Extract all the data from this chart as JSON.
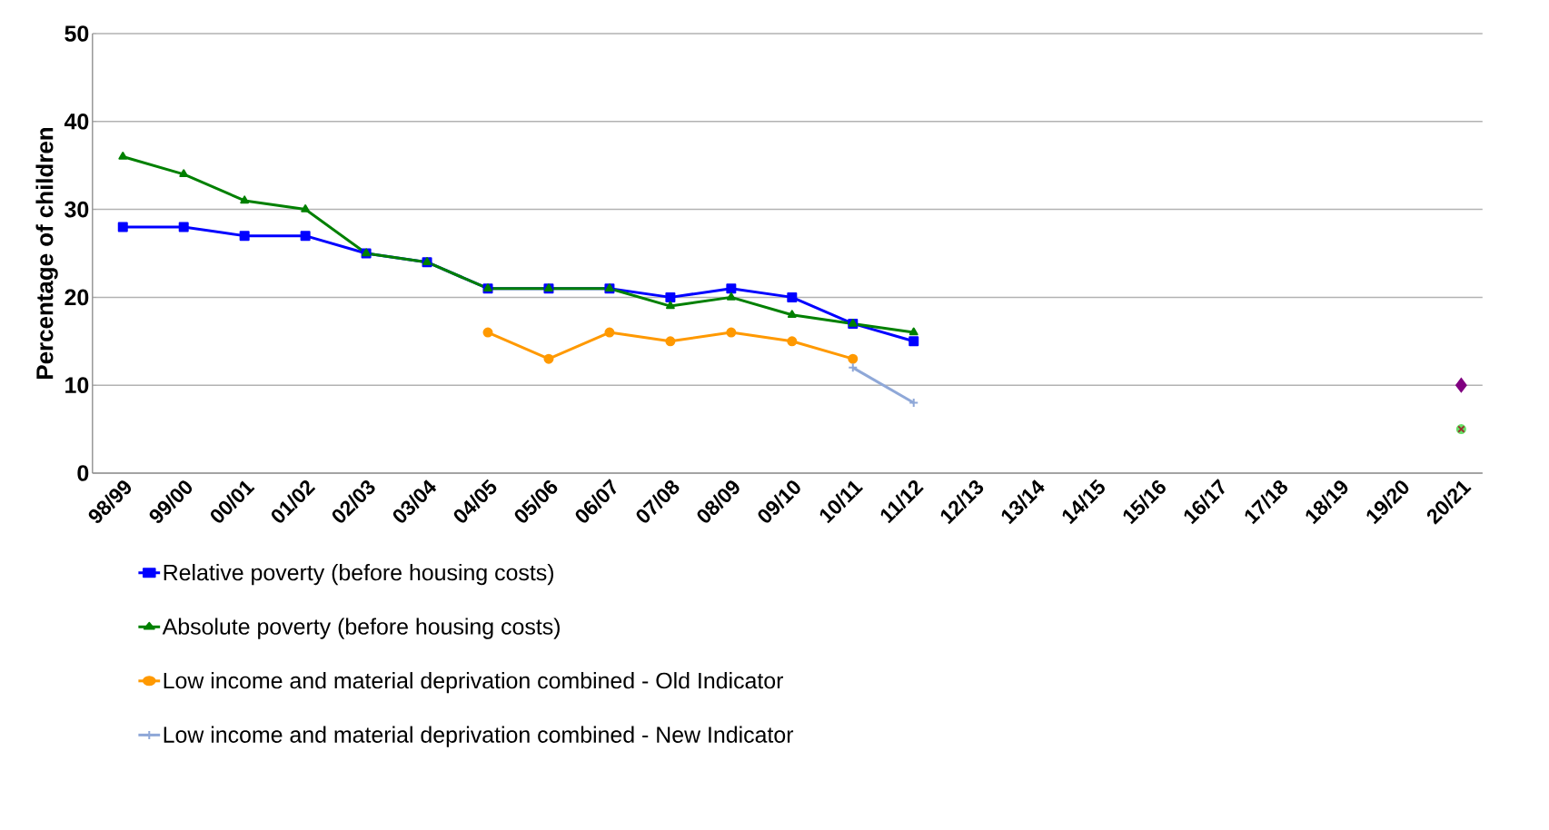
{
  "chart_data": {
    "type": "line",
    "ylabel": "Percentage of children",
    "categories": [
      "98/99",
      "99/00",
      "00/01",
      "01/02",
      "02/03",
      "03/04",
      "04/05",
      "05/06",
      "06/07",
      "07/08",
      "08/09",
      "09/10",
      "10/11",
      "11/12",
      "12/13",
      "13/14",
      "14/15",
      "15/16",
      "16/17",
      "17/18",
      "18/19",
      "19/20",
      "20/21"
    ],
    "ylim": [
      0,
      50
    ],
    "yticks": [
      0,
      10,
      20,
      30,
      40,
      50
    ],
    "grid": "y",
    "legend": "bottom",
    "series": [
      {
        "name": "Relative poverty (before housing costs)",
        "color": "#0000ff",
        "marker": "square",
        "values": [
          28,
          28,
          27,
          27,
          25,
          24,
          21,
          21,
          21,
          20,
          21,
          20,
          17,
          15,
          null,
          null,
          null,
          null,
          null,
          null,
          null,
          null,
          null
        ]
      },
      {
        "name": "Absolute poverty (before housing costs)",
        "color": "#008000",
        "marker": "triangle",
        "values": [
          36,
          34,
          31,
          30,
          25,
          24,
          21,
          21,
          21,
          19,
          20,
          18,
          17,
          16,
          null,
          null,
          null,
          null,
          null,
          null,
          null,
          null,
          null
        ]
      },
      {
        "name": "Low income and material deprivation combined - Old Indicator",
        "color": "#ff9900",
        "marker": "circle",
        "values": [
          null,
          null,
          null,
          null,
          null,
          null,
          16,
          13,
          16,
          15,
          16,
          15,
          13,
          null,
          null,
          null,
          null,
          null,
          null,
          null,
          null,
          null,
          null
        ]
      },
      {
        "name": "Low income and material deprivation combined - New Indicator",
        "color": "#8fa8d8",
        "marker": "cross",
        "values": [
          null,
          null,
          null,
          null,
          null,
          null,
          null,
          null,
          null,
          null,
          null,
          null,
          12,
          8,
          null,
          null,
          null,
          null,
          null,
          null,
          null,
          null,
          null
        ]
      },
      {
        "type": "scatter",
        "color": "#800080",
        "marker": "diamond",
        "values": [
          null,
          null,
          null,
          null,
          null,
          null,
          null,
          null,
          null,
          null,
          null,
          null,
          null,
          null,
          null,
          null,
          null,
          null,
          null,
          null,
          null,
          null,
          10
        ]
      },
      {
        "type": "scatter",
        "color": "#66e066",
        "marker": "circle",
        "values": [
          null,
          null,
          null,
          null,
          null,
          null,
          null,
          null,
          null,
          null,
          null,
          null,
          null,
          null,
          null,
          null,
          null,
          null,
          null,
          null,
          null,
          null,
          5
        ]
      },
      {
        "type": "scatter",
        "color": "#993333",
        "marker": "cross",
        "values": [
          null,
          null,
          null,
          null,
          null,
          null,
          null,
          null,
          null,
          null,
          null,
          null,
          null,
          null,
          null,
          null,
          null,
          null,
          null,
          null,
          null,
          null,
          5
        ]
      }
    ]
  }
}
